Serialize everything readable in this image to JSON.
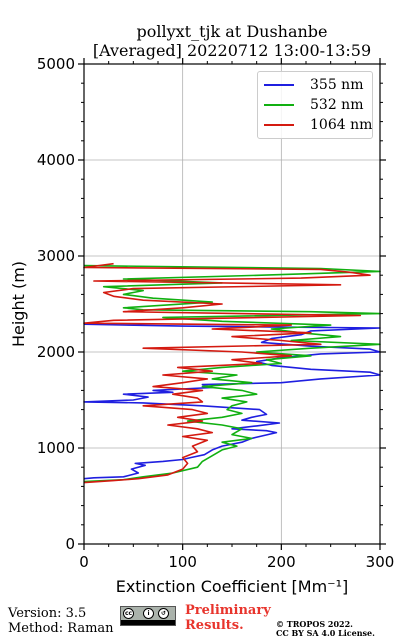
{
  "title_line1": "pollyxt_tjk at Dushanbe",
  "title_line2": "[Averaged] 20220712 13:00-13:59",
  "footer": {
    "version": "Version: 3.5",
    "method": "Method: Raman",
    "preliminary_line1": "Preliminary",
    "preliminary_line2": "Results.",
    "copyright_line1": "© TROPOS 2022.",
    "copyright_line2": "CC BY SA 4.0 License.",
    "preliminary_color": "#e8342c"
  },
  "chart_data": {
    "type": "line",
    "xlabel": "Extinction Coefficient [Mm⁻¹]",
    "ylabel": "Height (m)",
    "xlim": [
      0,
      300
    ],
    "ylim": [
      0,
      5000
    ],
    "xticks": [
      0,
      100,
      200,
      300
    ],
    "yticks": [
      0,
      1000,
      2000,
      3000,
      4000,
      5000
    ],
    "grid": true,
    "legend_position": "top-right",
    "series": [
      {
        "name": "355 nm",
        "color": "#1f1fe0",
        "points": [
          [
            0,
            680
          ],
          [
            10,
            690
          ],
          [
            40,
            700
          ],
          [
            55,
            740
          ],
          [
            48,
            780
          ],
          [
            62,
            820
          ],
          [
            52,
            840
          ],
          [
            80,
            860
          ],
          [
            100,
            880
          ],
          [
            108,
            900
          ],
          [
            122,
            930
          ],
          [
            130,
            980
          ],
          [
            140,
            1020
          ],
          [
            160,
            1060
          ],
          [
            170,
            1100
          ],
          [
            195,
            1160
          ],
          [
            185,
            1180
          ],
          [
            150,
            1200
          ],
          [
            175,
            1230
          ],
          [
            198,
            1260
          ],
          [
            160,
            1290
          ],
          [
            170,
            1320
          ],
          [
            185,
            1350
          ],
          [
            178,
            1400
          ],
          [
            120,
            1440
          ],
          [
            60,
            1470
          ],
          [
            0,
            1480
          ],
          [
            50,
            1500
          ],
          [
            65,
            1530
          ],
          [
            40,
            1560
          ],
          [
            90,
            1580
          ],
          [
            70,
            1600
          ],
          [
            130,
            1630
          ],
          [
            120,
            1660
          ],
          [
            200,
            1680
          ],
          [
            240,
            1720
          ],
          [
            300,
            1760
          ],
          [
            290,
            1790
          ],
          [
            230,
            1820
          ],
          [
            190,
            1860
          ],
          [
            175,
            1900
          ],
          [
            200,
            1940
          ],
          [
            240,
            1980
          ],
          [
            300,
            2000
          ],
          [
            290,
            2030
          ],
          [
            230,
            2060
          ],
          [
            180,
            2100
          ],
          [
            190,
            2140
          ],
          [
            220,
            2180
          ],
          [
            230,
            2220
          ],
          [
            300,
            2250
          ],
          [
            100,
            2270
          ],
          [
            0,
            2290
          ]
        ]
      },
      {
        "name": "532 nm",
        "color": "#11b011",
        "points": [
          [
            0,
            650
          ],
          [
            40,
            670
          ],
          [
            60,
            700
          ],
          [
            90,
            740
          ],
          [
            115,
            800
          ],
          [
            120,
            860
          ],
          [
            130,
            920
          ],
          [
            140,
            980
          ],
          [
            155,
            1020
          ],
          [
            140,
            1060
          ],
          [
            170,
            1100
          ],
          [
            150,
            1140
          ],
          [
            160,
            1200
          ],
          [
            140,
            1240
          ],
          [
            105,
            1280
          ],
          [
            140,
            1320
          ],
          [
            160,
            1360
          ],
          [
            145,
            1400
          ],
          [
            150,
            1440
          ],
          [
            165,
            1480
          ],
          [
            140,
            1520
          ],
          [
            175,
            1560
          ],
          [
            160,
            1600
          ],
          [
            120,
            1640
          ],
          [
            170,
            1680
          ],
          [
            130,
            1720
          ],
          [
            155,
            1760
          ],
          [
            100,
            1800
          ],
          [
            140,
            1840
          ],
          [
            200,
            1880
          ],
          [
            185,
            1920
          ],
          [
            230,
            1960
          ],
          [
            175,
            2000
          ],
          [
            230,
            2040
          ],
          [
            300,
            2080
          ],
          [
            210,
            2120
          ],
          [
            260,
            2160
          ],
          [
            220,
            2200
          ],
          [
            190,
            2240
          ],
          [
            250,
            2280
          ],
          [
            140,
            2320
          ],
          [
            80,
            2360
          ],
          [
            300,
            2400
          ],
          [
            230,
            2420
          ],
          [
            60,
            2440
          ],
          [
            40,
            2460
          ],
          [
            130,
            2520
          ],
          [
            70,
            2560
          ],
          [
            40,
            2600
          ],
          [
            60,
            2640
          ],
          [
            20,
            2680
          ],
          [
            140,
            2720
          ],
          [
            40,
            2760
          ],
          [
            180,
            2800
          ],
          [
            300,
            2840
          ],
          [
            240,
            2870
          ],
          [
            0,
            2900
          ]
        ]
      },
      {
        "name": "1064 nm",
        "color": "#d41a10",
        "points": [
          [
            0,
            640
          ],
          [
            30,
            660
          ],
          [
            55,
            680
          ],
          [
            85,
            720
          ],
          [
            100,
            780
          ],
          [
            105,
            840
          ],
          [
            100,
            900
          ],
          [
            115,
            960
          ],
          [
            110,
            1020
          ],
          [
            125,
            1080
          ],
          [
            100,
            1120
          ],
          [
            130,
            1160
          ],
          [
            115,
            1200
          ],
          [
            85,
            1240
          ],
          [
            120,
            1280
          ],
          [
            95,
            1320
          ],
          [
            125,
            1360
          ],
          [
            110,
            1400
          ],
          [
            60,
            1440
          ],
          [
            120,
            1480
          ],
          [
            115,
            1520
          ],
          [
            90,
            1560
          ],
          [
            120,
            1600
          ],
          [
            70,
            1640
          ],
          [
            100,
            1680
          ],
          [
            125,
            1720
          ],
          [
            80,
            1760
          ],
          [
            130,
            1800
          ],
          [
            95,
            1840
          ],
          [
            180,
            1880
          ],
          [
            150,
            1920
          ],
          [
            210,
            1960
          ],
          [
            160,
            2000
          ],
          [
            60,
            2040
          ],
          [
            240,
            2080
          ],
          [
            200,
            2120
          ],
          [
            150,
            2160
          ],
          [
            230,
            2200
          ],
          [
            130,
            2240
          ],
          [
            210,
            2280
          ],
          [
            0,
            2300
          ],
          [
            30,
            2330
          ],
          [
            280,
            2380
          ],
          [
            40,
            2420
          ],
          [
            100,
            2460
          ],
          [
            140,
            2500
          ],
          [
            60,
            2540
          ],
          [
            30,
            2580
          ],
          [
            20,
            2620
          ],
          [
            50,
            2660
          ],
          [
            260,
            2700
          ],
          [
            10,
            2740
          ],
          [
            220,
            2770
          ],
          [
            290,
            2800
          ],
          [
            270,
            2830
          ],
          [
            240,
            2860
          ],
          [
            0,
            2880
          ],
          [
            30,
            2920
          ]
        ]
      }
    ]
  }
}
